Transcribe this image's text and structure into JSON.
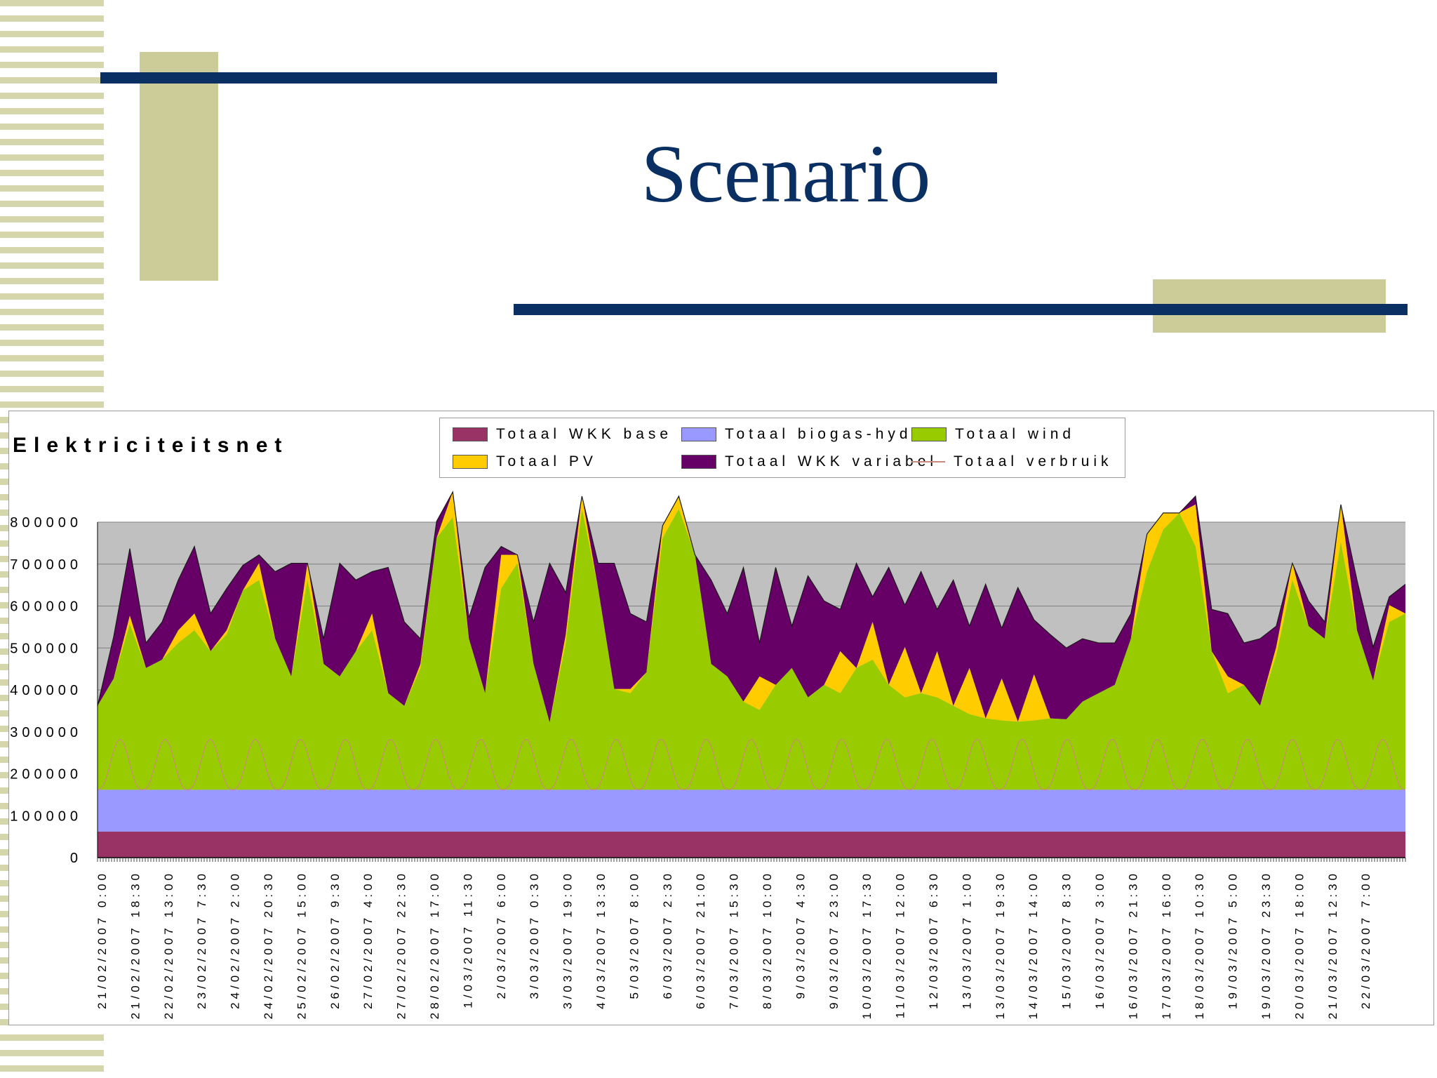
{
  "slide": {
    "title": "Scenario",
    "colors": {
      "navy": "#0a2f63",
      "khaki": "#cccc99",
      "stripe": "#d6d6ad"
    }
  },
  "chart_data": {
    "type": "area",
    "title": "Elektriciteitsnet",
    "xlabel": "",
    "ylabel": "",
    "ylim": [
      0,
      800000
    ],
    "yticks": [
      0,
      100000,
      200000,
      300000,
      400000,
      500000,
      600000,
      700000,
      800000
    ],
    "ytick_labels": [
      "0",
      "100000",
      "200000",
      "300000",
      "400000",
      "500000",
      "600000",
      "700000",
      "800000"
    ],
    "grid": true,
    "legend_position": "top",
    "plot_background": "#c0c0c0",
    "x_tick_labels": [
      "21/02/2007 0:00",
      "21/02/2007 18:30",
      "22/02/2007 13:00",
      "23/02/2007 7:30",
      "24/02/2007 2:00",
      "24/02/2007 20:30",
      "25/02/2007 15:00",
      "26/02/2007 9:30",
      "27/02/2007 4:00",
      "27/02/2007 22:30",
      "28/02/2007 17:00",
      "1/03/2007 11:30",
      "2/03/2007 6:00",
      "3/03/2007 0:30",
      "3/03/2007 19:00",
      "4/03/2007 13:30",
      "5/03/2007 8:00",
      "6/03/2007 2:30",
      "6/03/2007 21:00",
      "7/03/2007 15:30",
      "8/03/2007 10:00",
      "9/03/2007 4:30",
      "9/03/2007 23:00",
      "10/03/2007 17:30",
      "11/03/2007 12:00",
      "12/03/2007 6:30",
      "13/03/2007 1:00",
      "13/03/2007 19:30",
      "14/03/2007 14:00",
      "15/03/2007 8:30",
      "16/03/2007 3:00",
      "16/03/2007 21:30",
      "17/03/2007 16:00",
      "18/03/2007 10:30",
      "19/03/2007 5:00",
      "19/03/2007 23:30",
      "20/03/2007 18:00",
      "21/03/2007 12:30",
      "22/03/2007 7:00"
    ],
    "series": [
      {
        "name": "Totaal WKK base",
        "color": "#993366",
        "kind": "area",
        "values": [
          62000
        ]
      },
      {
        "name": "Totaal biogas-hydro",
        "color": "#9999ff",
        "kind": "area",
        "values": [
          100000
        ]
      },
      {
        "name": "Totaal wind",
        "color": "#99cc00",
        "kind": "area",
        "values": [
          200000,
          265000,
          395000,
          290000,
          310000,
          350000,
          380000,
          330000,
          370000,
          475000,
          500000,
          360000,
          270000,
          500000,
          300000,
          270000,
          330000,
          380000,
          230000,
          200000,
          290000,
          600000,
          650000,
          360000,
          230000,
          480000,
          540000,
          300000,
          160000,
          350000,
          670000,
          480000,
          240000,
          230000,
          280000,
          600000,
          670000,
          560000,
          300000,
          270000,
          210000,
          190000,
          250000,
          290000,
          220000,
          250000,
          230000,
          290000,
          310000,
          250000,
          220000,
          230000,
          220000,
          200000,
          180000,
          170000,
          165000,
          162000,
          165000,
          170000,
          168000,
          210000,
          230000,
          250000,
          360000,
          520000,
          620000,
          660000,
          580000,
          330000,
          230000,
          250000,
          200000,
          320000,
          500000,
          390000,
          360000,
          590000,
          380000,
          260000,
          400000,
          420000
        ]
      },
      {
        "name": "Totaal PV",
        "color": "#ffcc00",
        "kind": "area",
        "values": [
          0,
          0,
          20000,
          0,
          0,
          30000,
          40000,
          0,
          10000,
          0,
          40000,
          0,
          0,
          40000,
          0,
          0,
          0,
          40000,
          0,
          0,
          10000,
          0,
          60000,
          0,
          0,
          80000,
          20000,
          0,
          0,
          20000,
          30000,
          0,
          0,
          10000,
          0,
          30000,
          30000,
          0,
          0,
          0,
          0,
          80000,
          0,
          0,
          0,
          0,
          100000,
          0,
          90000,
          0,
          120000,
          0,
          110000,
          0,
          110000,
          0,
          100000,
          0,
          110000,
          0,
          0,
          0,
          0,
          0,
          0,
          90000,
          40000,
          0,
          100000,
          0,
          40000,
          0,
          0,
          20000,
          40000,
          0,
          0,
          90000,
          0,
          0,
          40000,
          0
        ]
      },
      {
        "name": "Totaal WKK variabel",
        "color": "#660066",
        "kind": "area",
        "values": [
          0,
          100000,
          160000,
          60000,
          90000,
          120000,
          160000,
          90000,
          100000,
          60000,
          20000,
          160000,
          270000,
          0,
          60000,
          270000,
          170000,
          100000,
          300000,
          200000,
          60000,
          40000,
          0,
          50000,
          300000,
          20000,
          0,
          100000,
          380000,
          100000,
          0,
          60000,
          300000,
          180000,
          120000,
          0,
          0,
          0,
          200000,
          150000,
          320000,
          80000,
          280000,
          100000,
          290000,
          200000,
          100000,
          250000,
          60000,
          280000,
          100000,
          290000,
          100000,
          300000,
          100000,
          320000,
          120000,
          320000,
          130000,
          200000,
          170000,
          150000,
          120000,
          100000,
          60000,
          0,
          0,
          0,
          20000,
          100000,
          150000,
          100000,
          160000,
          50000,
          0,
          60000,
          40000,
          0,
          120000,
          80000,
          20000,
          70000
        ]
      },
      {
        "name": "Totaal verbruik",
        "color": "#c98a7c",
        "kind": "line",
        "values": []
      }
    ]
  }
}
